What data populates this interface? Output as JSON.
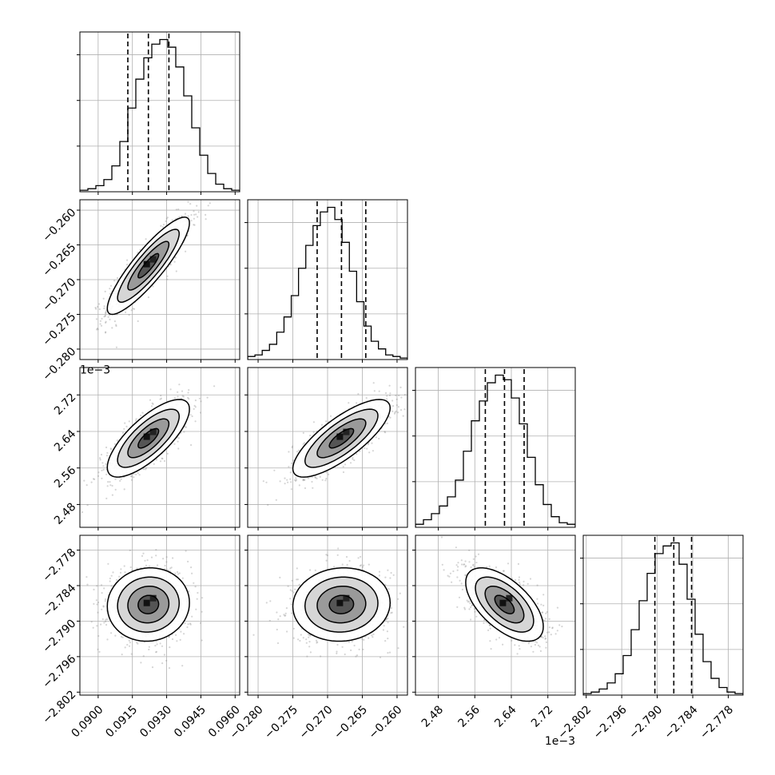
{
  "chart_data": {
    "type": "corner",
    "title": "",
    "parameters": [
      {
        "label": "",
        "range": [
          0.0892,
          0.0962
        ],
        "ticks": [
          0.09,
          0.0915,
          0.093,
          0.0945,
          0.096
        ],
        "tick_labels": [
          "0.0900",
          "0.0915",
          "0.0930",
          "0.0945",
          "0.0960"
        ],
        "offset_text": "",
        "quantiles": [
          0.0913,
          0.0922,
          0.0931
        ],
        "histogram": [
          0.01,
          0.02,
          0.04,
          0.08,
          0.17,
          0.33,
          0.55,
          0.74,
          0.88,
          0.97,
          1.0,
          0.95,
          0.82,
          0.63,
          0.42,
          0.24,
          0.12,
          0.05,
          0.02,
          0.01
        ]
      },
      {
        "label": "",
        "range": [
          -0.2815,
          -0.2585
        ],
        "ticks": [
          -0.28,
          -0.275,
          -0.27,
          -0.265,
          -0.26
        ],
        "tick_labels": [
          "−0.280",
          "−0.275",
          "−0.270",
          "−0.265",
          "−0.260"
        ],
        "offset_text": "",
        "quantiles": [
          -0.2715,
          -0.268,
          -0.2645
        ],
        "histogram": [
          0.02,
          0.03,
          0.06,
          0.1,
          0.18,
          0.28,
          0.42,
          0.6,
          0.75,
          0.88,
          0.97,
          1.0,
          0.92,
          0.77,
          0.58,
          0.38,
          0.22,
          0.12,
          0.07,
          0.03,
          0.02,
          0.01
        ]
      },
      {
        "label": "",
        "range": [
          2.43,
          2.78
        ],
        "ticks": [
          2.48,
          2.56,
          2.64,
          2.72
        ],
        "tick_labels": [
          "2.48",
          "2.56",
          "2.64",
          "2.72"
        ],
        "offset_text": "1e−3",
        "quantiles": [
          2.583,
          2.625,
          2.668
        ],
        "histogram": [
          0.02,
          0.05,
          0.09,
          0.14,
          0.2,
          0.31,
          0.5,
          0.7,
          0.83,
          0.95,
          1.0,
          0.97,
          0.85,
          0.68,
          0.46,
          0.28,
          0.15,
          0.07,
          0.03,
          0.02
        ]
      },
      {
        "label": "",
        "range": [
          -2.8025,
          -2.7755
        ],
        "ticks": [
          -2.802,
          -2.796,
          -2.79,
          -2.784,
          -2.778
        ],
        "tick_labels": [
          "−2.802",
          "−2.796",
          "−2.790",
          "−2.784",
          "−2.778"
        ],
        "offset_text": "1e−3",
        "quantiles": [
          -2.7904,
          -2.7872,
          -2.7842
        ],
        "histogram": [
          0.01,
          0.02,
          0.04,
          0.08,
          0.14,
          0.26,
          0.43,
          0.62,
          0.8,
          0.93,
          0.98,
          1.0,
          0.86,
          0.63,
          0.4,
          0.22,
          0.11,
          0.05,
          0.02,
          0.01
        ]
      }
    ],
    "pairs": [
      {
        "x": 0,
        "y": 1,
        "mean": [
          0.0922,
          -0.268
        ],
        "corr": 0.88
      },
      {
        "x": 0,
        "y": 2,
        "mean": [
          0.0922,
          2.625
        ],
        "corr": 0.75
      },
      {
        "x": 1,
        "y": 2,
        "mean": [
          -0.268,
          2.625
        ],
        "corr": 0.78
      },
      {
        "x": 0,
        "y": 3,
        "mean": [
          0.0922,
          -2.7872
        ],
        "corr": 0.05
      },
      {
        "x": 1,
        "y": 3,
        "mean": [
          -0.268,
          -2.7872
        ],
        "corr": 0.05
      },
      {
        "x": 2,
        "y": 3,
        "mean": [
          2.625,
          -2.7872
        ],
        "corr": -0.6
      }
    ],
    "contour_levels_sigma": [
      0.5,
      1.0,
      1.5,
      2.0
    ],
    "grid": true,
    "colors": {
      "line": "#000000",
      "grid": "#b0b0b0",
      "scatter": "#888888"
    }
  }
}
